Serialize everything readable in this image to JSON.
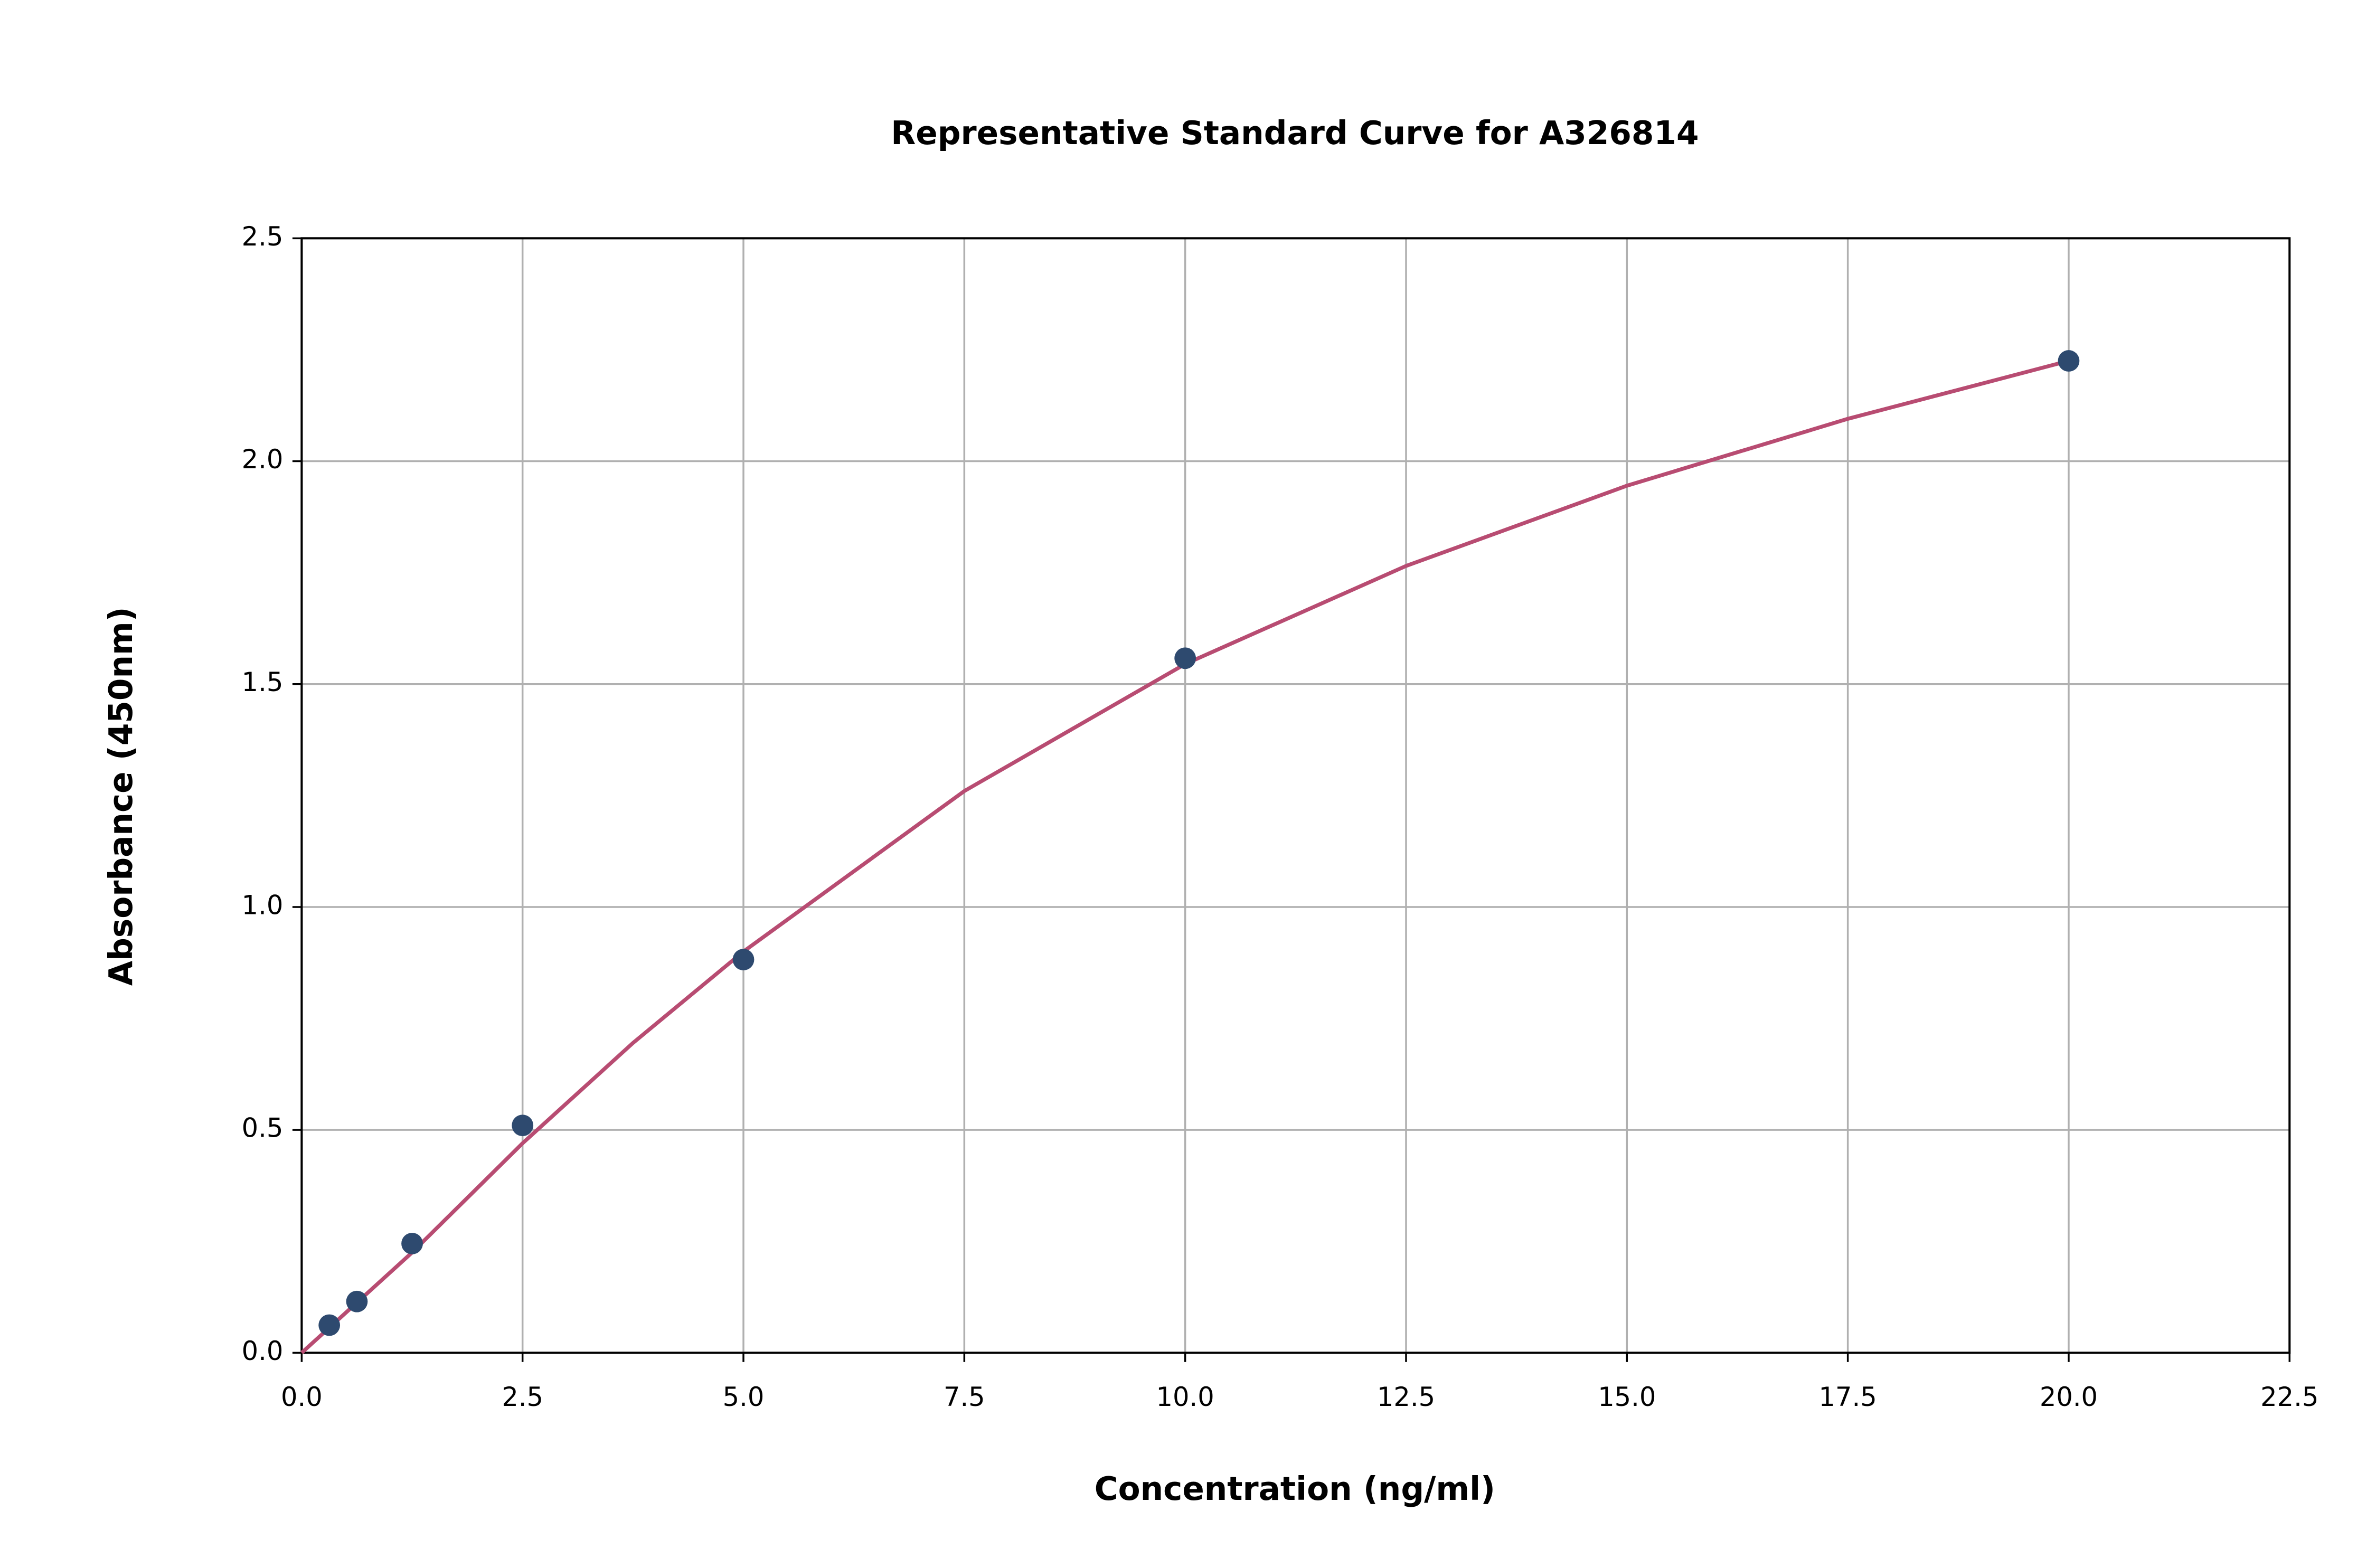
{
  "chart_data": {
    "type": "scatter",
    "title": "Representative Standard Curve for A326814",
    "xlabel": "Concentration (ng/ml)",
    "ylabel": "Absorbance (450nm)",
    "xlim": [
      0,
      22.5
    ],
    "ylim": [
      0,
      2.5
    ],
    "xticks": [
      {
        "value": 0,
        "label": "0.0"
      },
      2.5,
      {
        "value": 5,
        "label": "5.0"
      },
      7.5,
      {
        "value": 10,
        "label": "10.0"
      },
      12.5,
      {
        "value": 15,
        "label": "15.0"
      },
      17.5,
      {
        "value": 20,
        "label": "20.0"
      },
      22.5
    ],
    "yticks": [
      {
        "value": 0,
        "label": "0.0"
      },
      0.5,
      {
        "value": 1,
        "label": "1.0"
      },
      1.5,
      {
        "value": 2,
        "label": "2.0"
      },
      2.5
    ],
    "grid": true,
    "series": [
      {
        "type": "scatter",
        "color": "#2e4a6f",
        "x": [
          0.3125,
          0.625,
          1.25,
          2.5,
          5,
          10,
          20
        ],
        "values": [
          0.062,
          0.115,
          0.245,
          0.51,
          0.882,
          1.558,
          2.225
        ]
      },
      {
        "type": "line",
        "color": "#b84c72",
        "x": [
          0,
          1.25,
          2.5,
          3.75,
          5,
          7.5,
          10,
          12.5,
          15,
          17.5,
          20
        ],
        "values": [
          0,
          0.225,
          0.47,
          0.695,
          0.9,
          1.26,
          1.545,
          1.765,
          1.945,
          2.095,
          2.225
        ]
      }
    ]
  }
}
